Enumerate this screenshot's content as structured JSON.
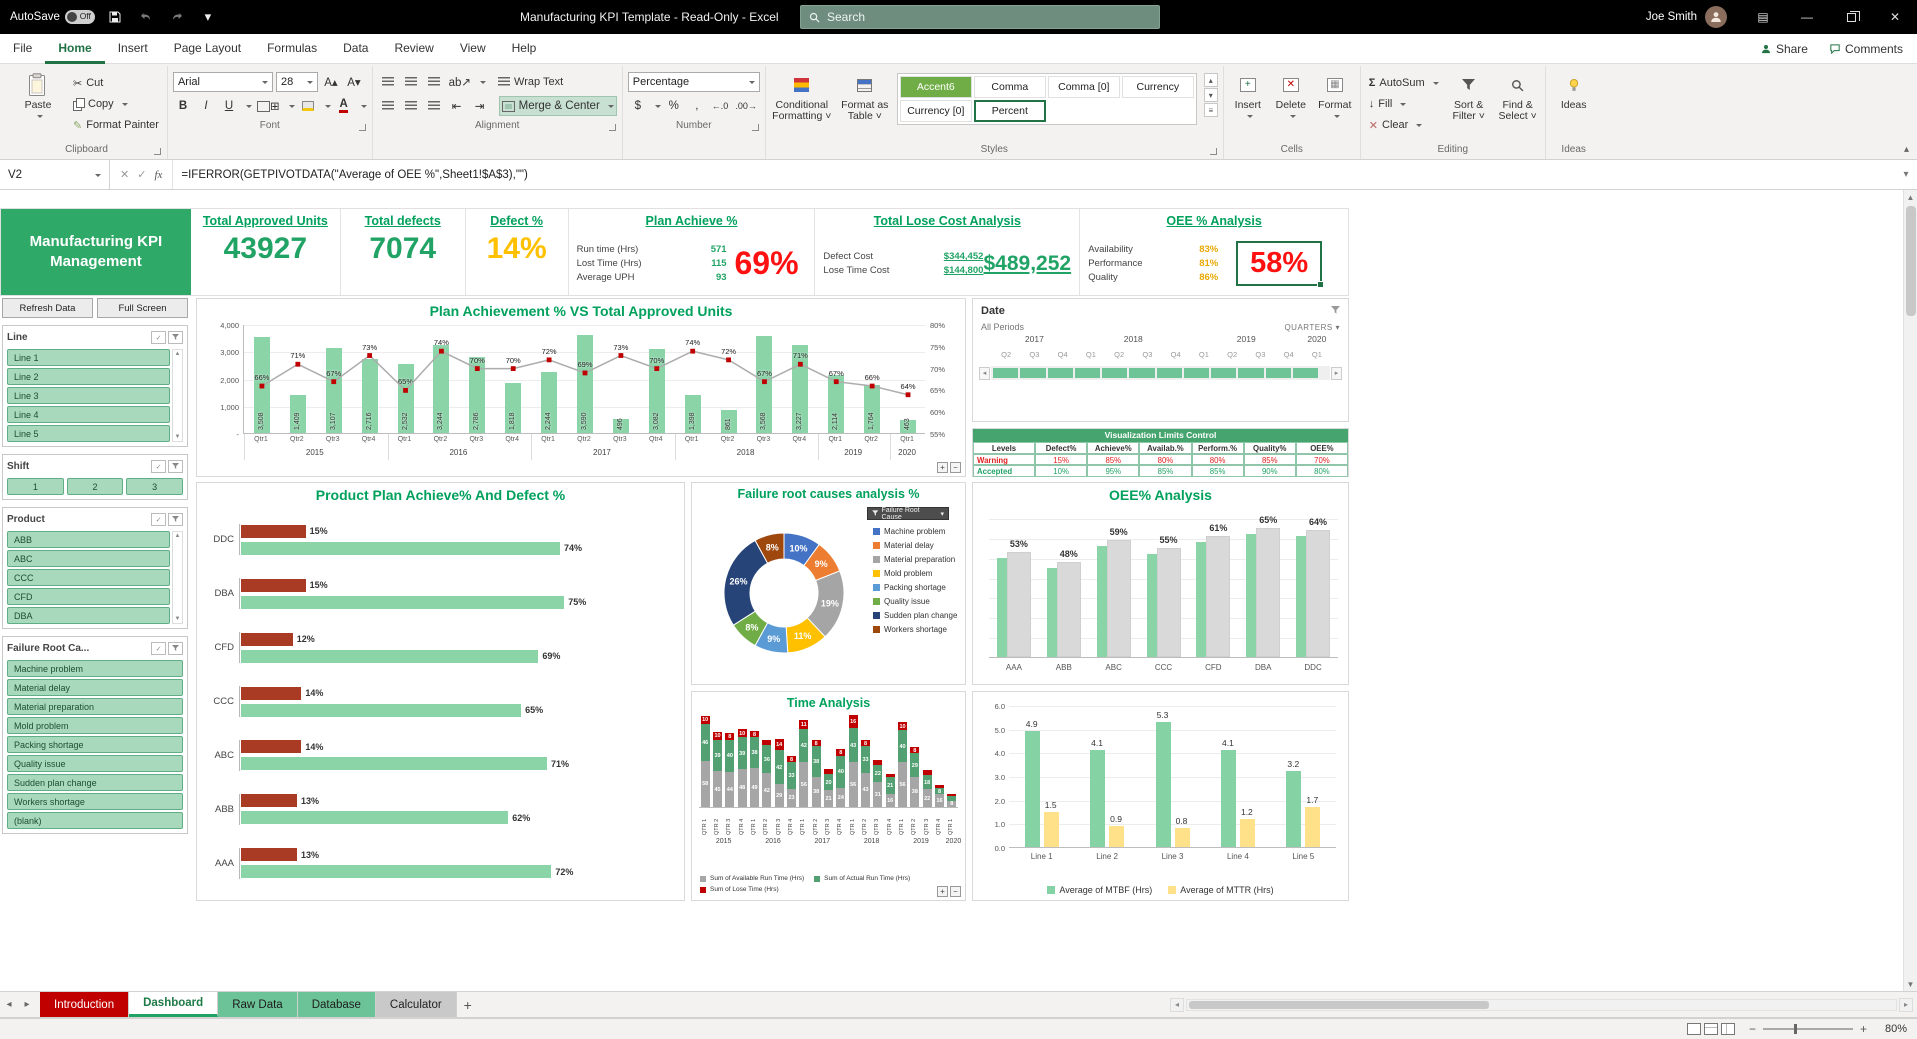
{
  "title_bar": {
    "autosave": "AutoSave",
    "autosave_state": "Off",
    "title": "Manufacturing KPI Template  -  Read-Only -  Excel",
    "search": "Search",
    "user": "Joe Smith"
  },
  "ribbon_tabs": {
    "items": [
      "File",
      "Home",
      "Insert",
      "Page Layout",
      "Formulas",
      "Data",
      "Review",
      "View",
      "Help"
    ],
    "active": "Home",
    "share": "Share",
    "comments": "Comments"
  },
  "ribbon": {
    "clipboard": {
      "label": "Clipboard",
      "paste": "Paste",
      "cut": "Cut",
      "copy": "Copy",
      "format_painter": "Format Painter"
    },
    "font": {
      "label": "Font",
      "family": "Arial",
      "size": "28"
    },
    "alignment": {
      "label": "Alignment",
      "wrap_text": "Wrap Text",
      "merge_center": "Merge & Center"
    },
    "number": {
      "label": "Number",
      "format": "Percentage"
    },
    "styles": {
      "label": "Styles",
      "conditional": "Conditional\nFormatting ˅",
      "format_table": "Format as\nTable ˅",
      "gallery": [
        "Accent6",
        "Comma",
        "Comma [0]",
        "Currency",
        "Currency [0]",
        "Percent"
      ],
      "selected": "Percent"
    },
    "cells": {
      "label": "Cells",
      "insert": "Insert",
      "delete": "Delete",
      "format": "Format"
    },
    "editing": {
      "label": "Editing",
      "autosum": "AutoSum",
      "fill": "Fill",
      "clear": "Clear",
      "sort": "Sort &\nFilter ˅",
      "find": "Find &\nSelect ˅"
    },
    "ideas": {
      "label": "Ideas",
      "ideas": "Ideas"
    }
  },
  "formula_bar": {
    "name_box": "V2",
    "formula": "=IFERROR(GETPIVOTDATA(\"Average of OEE %\",Sheet1!$A$3),\"\")"
  },
  "kpi": {
    "brand": "Manufacturing KPI Management",
    "cards": [
      {
        "title": "Total Approved Units",
        "value": "43927"
      },
      {
        "title": "Total defects",
        "value": "7074"
      },
      {
        "title": "Defect %",
        "value": "14%"
      }
    ],
    "plan": {
      "title": "Plan Achieve %",
      "rows": [
        [
          "Run time (Hrs)",
          "571"
        ],
        [
          "Lost Time (Hrs)",
          "115"
        ],
        [
          "Average UPH",
          "93"
        ]
      ],
      "value": "69%"
    },
    "cost": {
      "title": "Total Lose Cost Analysis",
      "rows": [
        [
          "Defect Cost",
          "$344,452"
        ],
        [
          "Lose Time Cost",
          "$144,800"
        ]
      ],
      "value": "$489,252"
    },
    "oee": {
      "title": "OEE % Analysis",
      "rows": [
        [
          "Availability",
          "83%"
        ],
        [
          "Performance",
          "81%"
        ],
        [
          "Quality",
          "86%"
        ]
      ],
      "value": "58%"
    }
  },
  "sidebar": {
    "buttons": [
      "Refresh Data",
      "Full Screen"
    ],
    "slicers": [
      {
        "title": "Line",
        "items": [
          "Line 1",
          "Line 2",
          "Line 3",
          "Line 4",
          "Line 5"
        ],
        "layout": "list",
        "scrollbar": true
      },
      {
        "title": "Shift",
        "items": [
          "1",
          "2",
          "3"
        ],
        "layout": "row",
        "scrollbar": false
      },
      {
        "title": "Product",
        "items": [
          "ABB",
          "ABC",
          "CCC",
          "CFD",
          "DBA"
        ],
        "layout": "list",
        "scrollbar": true
      },
      {
        "title": "Failure Root Ca...",
        "items": [
          "Machine problem",
          "Material delay",
          "Material preparation",
          "Mold problem",
          "Packing shortage",
          "Quality issue",
          "Sudden plan change",
          "Workers shortage",
          "(blank)"
        ],
        "layout": "list",
        "scrollbar": false
      }
    ]
  },
  "date_panel": {
    "title": "Date",
    "period": "All Periods",
    "granularity": "QUARTERS",
    "groups": [
      {
        "year": "2017",
        "quarters": [
          "Q2",
          "Q3",
          "Q4"
        ]
      },
      {
        "year": "2018",
        "quarters": [
          "Q1",
          "Q2",
          "Q3",
          "Q4"
        ]
      },
      {
        "year": "2019",
        "quarters": [
          "Q1",
          "Q2",
          "Q3",
          "Q4"
        ]
      },
      {
        "year": "2020",
        "quarters": [
          "Q1"
        ]
      }
    ]
  },
  "limits": {
    "title": "Visualization Limits Control",
    "headers": [
      "Levels",
      "Defect%",
      "Achieve%",
      "Availab.%",
      "Perform.%",
      "Quality%",
      "OEE%"
    ],
    "rows": [
      {
        "level": "Warning",
        "color": "#E02020",
        "values": [
          "15%",
          "85%",
          "80%",
          "80%",
          "85%",
          "70%"
        ]
      },
      {
        "level": "Accepted",
        "color": "#21A366",
        "values": [
          "10%",
          "95%",
          "85%",
          "85%",
          "90%",
          "80%"
        ]
      }
    ]
  },
  "chart_data": [
    {
      "id": "plan_vs_units",
      "type": "bar+line",
      "title": "Plan Achievement % VS Total Approved Units",
      "bar_color": "#8BD4A8",
      "line_color": "#ACACAC",
      "marker_color": "#C00000",
      "categories": [
        "Qtr1",
        "Qtr2",
        "Qtr3",
        "Qtr4",
        "Qtr1",
        "Qtr2",
        "Qtr3",
        "Qtr4",
        "Qtr1",
        "Qtr2",
        "Qtr3",
        "Qtr4",
        "Qtr1",
        "Qtr2",
        "Qtr3",
        "Qtr4",
        "Qtr1",
        "Qtr2",
        "Qtr1"
      ],
      "year_groups": [
        {
          "label": "2015",
          "span": 4
        },
        {
          "label": "2016",
          "span": 4
        },
        {
          "label": "2017",
          "span": 4
        },
        {
          "label": "2018",
          "span": 4
        },
        {
          "label": "2019",
          "span": 2
        },
        {
          "label": "2020",
          "span": 1
        }
      ],
      "bars": [
        3508,
        1409,
        3107,
        2716,
        2532,
        3244,
        2786,
        1818,
        2244,
        3590,
        496,
        3082,
        1398,
        861,
        3568,
        3227,
        2114,
        1764,
        463
      ],
      "bar_labels": [
        "3,508",
        "1,409",
        "3,107",
        "2,716",
        "2,532",
        "3,244",
        "2,786",
        "1,818",
        "2,244",
        "3,590",
        "496",
        "3,082",
        "1,398",
        "861",
        "3,568",
        "3,227",
        "2,114",
        "1,764",
        "463"
      ],
      "line_pct": [
        66,
        71,
        67,
        73,
        65,
        74,
        70,
        70,
        72,
        69,
        73,
        70,
        74,
        72,
        67,
        71,
        67,
        66,
        64
      ],
      "y_left_labels": [
        "4,000",
        "3,000",
        "2,000",
        "1,000",
        "-"
      ],
      "y_left_values": [
        4000,
        3000,
        2000,
        1000,
        0
      ],
      "y_right_labels": [
        "80%",
        "75%",
        "70%",
        "65%",
        "60%",
        "55%"
      ],
      "y_right_values": [
        80,
        75,
        70,
        65,
        60,
        55
      ],
      "ylim_left": [
        0,
        4000
      ],
      "ylim_right": [
        55,
        80
      ]
    },
    {
      "id": "product_plan",
      "type": "hbar",
      "title": "Product Plan Achieve% And Defect %",
      "categories": [
        "DDC",
        "DBA",
        "CFD",
        "CCC",
        "ABC",
        "ABB",
        "AAA"
      ],
      "series": [
        {
          "name": "Defect %",
          "color": "#A93B25",
          "values": [
            15,
            15,
            12,
            14,
            14,
            13,
            13
          ],
          "labels": [
            "15%",
            "15%",
            "12%",
            "14%",
            "14%",
            "13%",
            "13%"
          ]
        },
        {
          "name": "Plan Achieve %",
          "color": "#8BD4A8",
          "values": [
            74,
            75,
            69,
            65,
            71,
            62,
            72
          ],
          "labels": [
            "74%",
            "75%",
            "69%",
            "65%",
            "71%",
            "62%",
            "72%"
          ]
        }
      ],
      "xlim": [
        0,
        100
      ]
    },
    {
      "id": "failure_causes",
      "type": "donut",
      "title": "Failure root causes analysis %",
      "filter_button": "Failure Root Cause",
      "segments": [
        {
          "label": "Machine problem",
          "value": 10,
          "color": "#4472C4"
        },
        {
          "label": "Material delay",
          "value": 9,
          "color": "#ED7D31"
        },
        {
          "label": "Material preparation",
          "value": 19,
          "color": "#A5A5A5"
        },
        {
          "label": "Mold problem",
          "value": 11,
          "color": "#FFC000"
        },
        {
          "label": "Packing shortage",
          "value": 9,
          "color": "#5B9BD5"
        },
        {
          "label": "Quality issue",
          "value": 8,
          "color": "#70AD47"
        },
        {
          "label": "Sudden plan change",
          "value": 26,
          "color": "#264478"
        },
        {
          "label": "Workers shortage",
          "value": 8,
          "color": "#9E480E"
        }
      ]
    },
    {
      "id": "oee_analysis",
      "type": "column",
      "title": "OEE% Analysis",
      "categories": [
        "AAA",
        "ABB",
        "ABC",
        "CCC",
        "CFD",
        "DBA",
        "DDC"
      ],
      "values": [
        53,
        48,
        59,
        55,
        61,
        65,
        64
      ],
      "labels": [
        "53%",
        "48%",
        "59%",
        "55%",
        "61%",
        "65%",
        "64%"
      ],
      "bar_color": "#D9D9D9",
      "accent_color": "#8BD4A8",
      "ylim": [
        0,
        70
      ]
    },
    {
      "id": "time_analysis",
      "type": "stacked-column",
      "title": "Time Analysis",
      "legend": [
        {
          "name": "Sum of Available Run Time (Hrs)",
          "color": "#A6A6A6"
        },
        {
          "name": "Sum of Actual Run Time (Hrs)",
          "color": "#53A173"
        },
        {
          "name": "Sum of Lose Time (Hrs)",
          "color": "#C00000"
        }
      ],
      "year_groups": [
        {
          "label": "2015",
          "span": 4
        },
        {
          "label": "2016",
          "span": 4
        },
        {
          "label": "2017",
          "span": 4
        },
        {
          "label": "2018",
          "span": 4
        },
        {
          "label": "2019",
          "span": 4
        },
        {
          "label": "2020",
          "span": 1
        }
      ],
      "quarter_labels": [
        "QTR 1",
        "QTR 2",
        "QTR 3",
        "QTR 4",
        "QTR 1",
        "QTR 2",
        "QTR 3",
        "QTR 4",
        "QTR 1",
        "QTR 2",
        "QTR 3",
        "QTR 4",
        "QTR 1",
        "QTR 2",
        "QTR 3",
        "QTR 4",
        "QTR 1",
        "QTR 2",
        "QTR 3",
        "QTR 4",
        "QTR 1"
      ],
      "bars": [
        [
          58,
          46,
          10
        ],
        [
          45,
          39,
          10
        ],
        [
          44,
          40,
          8
        ],
        [
          48,
          39,
          10
        ],
        [
          49,
          38,
          8
        ],
        [
          42,
          36,
          6
        ],
        [
          29,
          42,
          14
        ],
        [
          23,
          33,
          8
        ],
        [
          56,
          42,
          11
        ],
        [
          38,
          38,
          8
        ],
        [
          21,
          20,
          6
        ],
        [
          24,
          40,
          8
        ],
        [
          56,
          43,
          16
        ],
        [
          43,
          33,
          8
        ],
        [
          31,
          22,
          6
        ],
        [
          16,
          21,
          4
        ],
        [
          56,
          40,
          10
        ],
        [
          38,
          29,
          8
        ],
        [
          22,
          18,
          6
        ],
        [
          16,
          8,
          4
        ],
        [
          8,
          6,
          2
        ]
      ]
    },
    {
      "id": "mtbf_mttr",
      "type": "grouped-column",
      "categories": [
        "Line 1",
        "Line 2",
        "Line 3",
        "Line 4",
        "Line 5"
      ],
      "series": [
        {
          "name": "Average of MTBF (Hrs)",
          "color": "#85D3A5",
          "values": [
            4.9,
            4.1,
            5.3,
            4.1,
            3.2
          ]
        },
        {
          "name": "Average of MTTR (Hrs)",
          "color": "#FFE18A",
          "values": [
            1.5,
            0.9,
            0.8,
            1.2,
            1.7
          ]
        }
      ],
      "y_ticks": [
        "6.0",
        "5.0",
        "4.0",
        "3.0",
        "2.0",
        "1.0",
        "0.0"
      ],
      "ylim": [
        0,
        6
      ]
    }
  ],
  "sheet_tabs": {
    "tabs": [
      {
        "name": "Introduction",
        "fill": "#C00000",
        "text": "#FFFFFF"
      },
      {
        "name": "Dashboard",
        "active": true
      },
      {
        "name": "Raw Data",
        "fill": "#6CC397",
        "text": "#1d1d1d"
      },
      {
        "name": "Database",
        "fill": "#6CC397",
        "text": "#1d1d1d"
      },
      {
        "name": "Calculator",
        "fill": "#C9C9C9",
        "text": "#222222"
      }
    ]
  },
  "status_bar": {
    "zoom": "80%"
  }
}
